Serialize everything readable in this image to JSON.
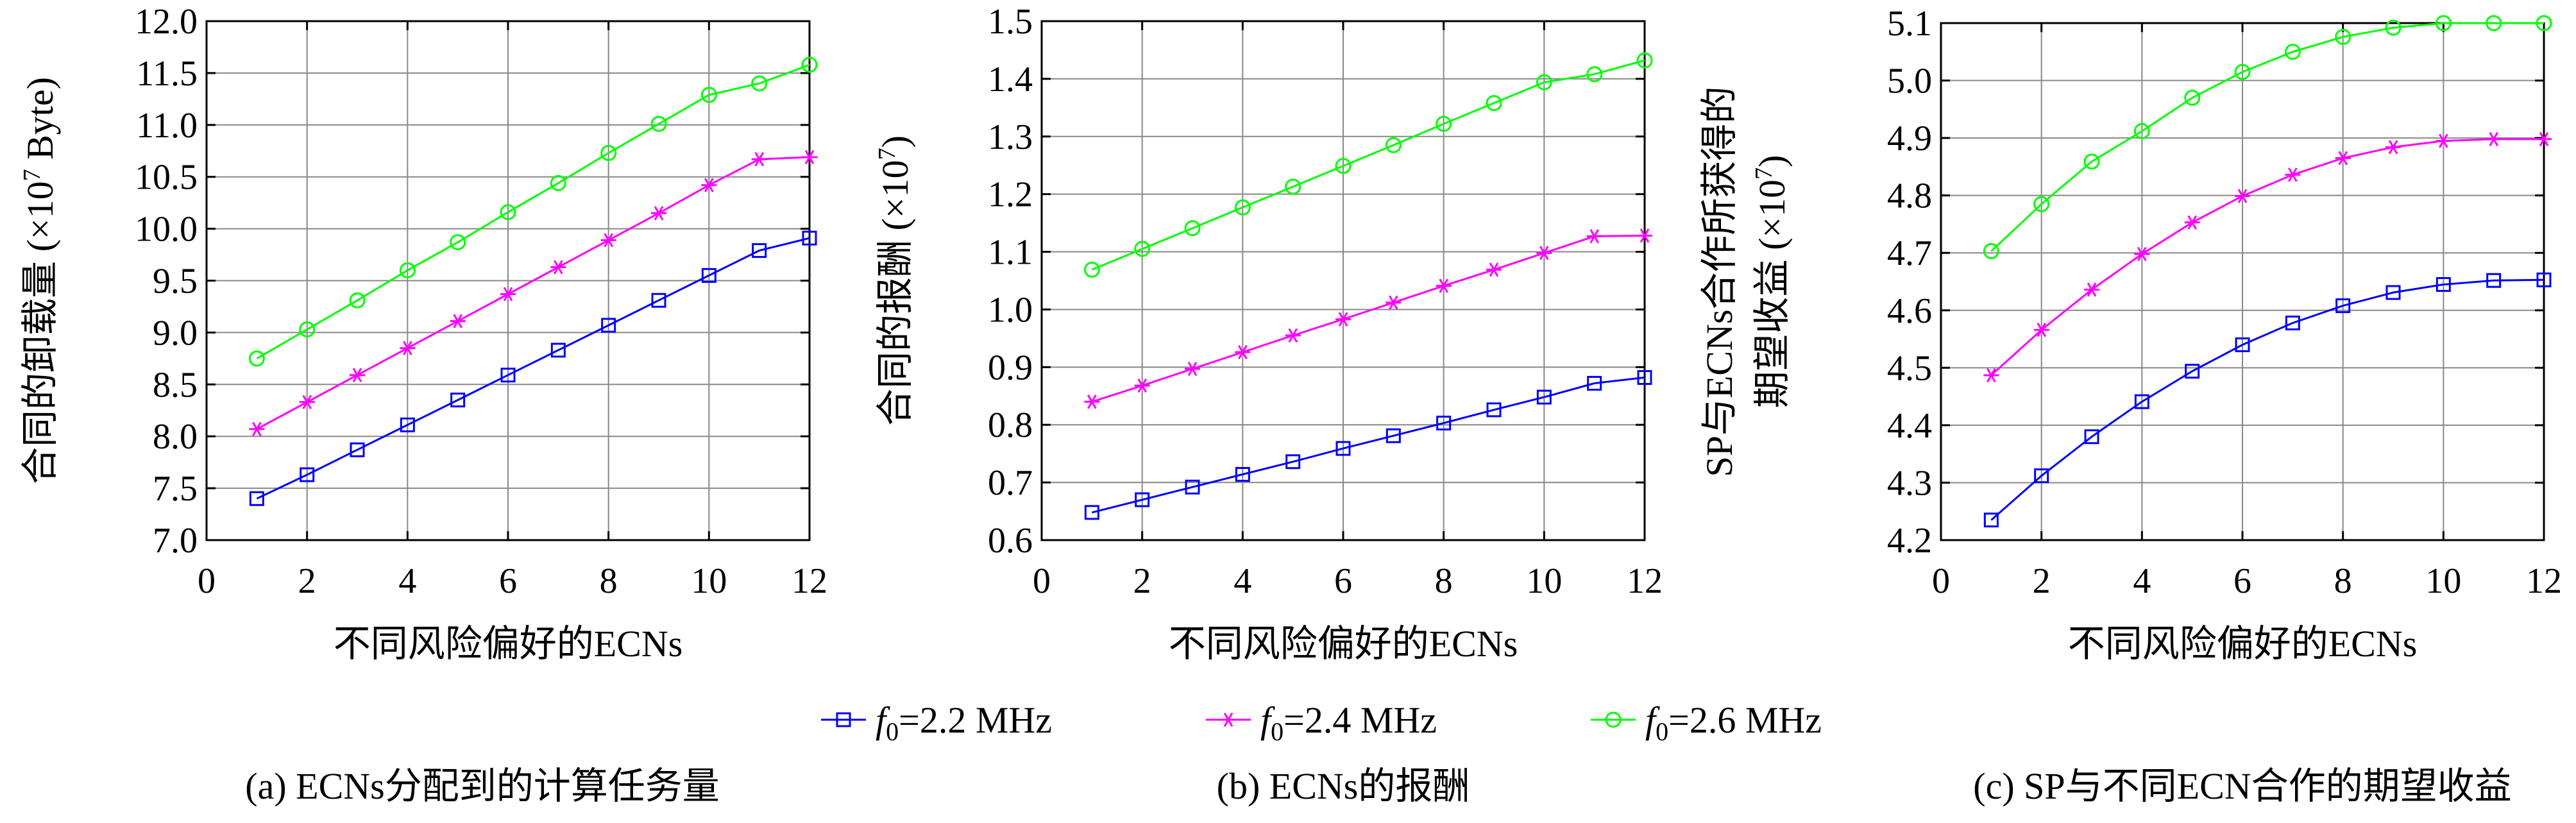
{
  "legend": {
    "items": [
      {
        "prefix": "f",
        "sub": "0",
        "suffix": "=2.2 MHz",
        "color": "#0000ff",
        "marker": "square"
      },
      {
        "prefix": "f",
        "sub": "0",
        "suffix": "=2.4 MHz",
        "color": "#ff00ff",
        "marker": "star"
      },
      {
        "prefix": "f",
        "sub": "0",
        "suffix": "=2.6 MHz",
        "color": "#00ff00",
        "marker": "circle"
      }
    ]
  },
  "chart_data": [
    {
      "type": "line",
      "caption": "(a) ECNs分配到的计算任务量",
      "xlabel": "不同风险偏好的ECNs",
      "ylabel_lines": [
        [
          {
            "t": "合同的卸载量 (×10"
          },
          {
            "t": "7",
            "sup": true
          },
          {
            "t": " Byte)"
          }
        ]
      ],
      "xlim": [
        0,
        12
      ],
      "ylim": [
        7.0,
        12.0
      ],
      "xticks": [
        0,
        2,
        4,
        6,
        8,
        10,
        12
      ],
      "yticks": [
        7.0,
        7.5,
        8.0,
        8.5,
        9.0,
        9.5,
        10.0,
        10.5,
        11.0,
        11.5,
        12.0
      ],
      "ytick_decimals": 1,
      "grid": true,
      "x": [
        1,
        2,
        3,
        4,
        5,
        6,
        7,
        8,
        9,
        10,
        11,
        12
      ],
      "series": [
        {
          "name": "f0=2.2 MHz",
          "values": [
            7.4,
            7.63,
            7.87,
            8.11,
            8.35,
            8.59,
            8.83,
            9.07,
            9.31,
            9.55,
            9.79,
            9.91
          ]
        },
        {
          "name": "f0=2.4 MHz",
          "values": [
            8.07,
            8.33,
            8.59,
            8.85,
            9.11,
            9.37,
            9.63,
            9.89,
            10.15,
            10.42,
            10.67,
            10.69
          ]
        },
        {
          "name": "f0=2.6 MHz",
          "values": [
            8.75,
            9.03,
            9.31,
            9.6,
            9.87,
            10.16,
            10.44,
            10.73,
            11.01,
            11.29,
            11.4,
            11.58
          ]
        }
      ]
    },
    {
      "type": "line",
      "caption": "(b) ECNs的报酬",
      "xlabel": "不同风险偏好的ECNs",
      "ylabel_lines": [
        [
          {
            "t": "合同的报酬 (×10"
          },
          {
            "t": "7",
            "sup": true
          },
          {
            "t": ")"
          }
        ]
      ],
      "xlim": [
        0,
        12
      ],
      "ylim": [
        0.6,
        1.5
      ],
      "xticks": [
        0,
        2,
        4,
        6,
        8,
        10,
        12
      ],
      "yticks": [
        0.6,
        0.7,
        0.8,
        0.9,
        1.0,
        1.1,
        1.2,
        1.3,
        1.4,
        1.5
      ],
      "ytick_decimals": 1,
      "grid": true,
      "x": [
        1,
        2,
        3,
        4,
        5,
        6,
        7,
        8,
        9,
        10,
        11,
        12
      ],
      "series": [
        {
          "name": "f0=2.2 MHz",
          "values": [
            0.648,
            0.67,
            0.692,
            0.714,
            0.736,
            0.759,
            0.781,
            0.803,
            0.826,
            0.848,
            0.872,
            0.882
          ]
        },
        {
          "name": "f0=2.4 MHz",
          "values": [
            0.84,
            0.868,
            0.897,
            0.926,
            0.955,
            0.983,
            1.012,
            1.041,
            1.069,
            1.098,
            1.127,
            1.128
          ]
        },
        {
          "name": "f0=2.6 MHz",
          "values": [
            1.069,
            1.105,
            1.141,
            1.177,
            1.213,
            1.249,
            1.285,
            1.322,
            1.358,
            1.394,
            1.408,
            1.432
          ]
        }
      ]
    },
    {
      "type": "line",
      "caption": "(c) SP与不同ECN合作的期望收益",
      "xlabel": "不同风险偏好的ECNs",
      "ylabel_lines": [
        [
          {
            "t": "SP与ECNs合作所获得的"
          }
        ],
        [
          {
            "t": "期望收益 (×10"
          },
          {
            "t": "7",
            "sup": true
          },
          {
            "t": ")"
          }
        ]
      ],
      "xlim": [
        0,
        12
      ],
      "ylim": [
        4.2,
        5.1
      ],
      "xticks": [
        0,
        2,
        4,
        6,
        8,
        10,
        12
      ],
      "yticks": [
        4.2,
        4.3,
        4.4,
        4.5,
        4.6,
        4.7,
        4.8,
        4.9,
        5.0,
        5.1
      ],
      "ytick_decimals": 1,
      "grid": true,
      "x": [
        1,
        2,
        3,
        4,
        5,
        6,
        7,
        8,
        9,
        10,
        11,
        12
      ],
      "series": [
        {
          "name": "f0=2.2 MHz",
          "values": [
            4.235,
            4.312,
            4.38,
            4.441,
            4.494,
            4.54,
            4.578,
            4.608,
            4.631,
            4.645,
            4.652,
            4.653
          ]
        },
        {
          "name": "f0=2.4 MHz",
          "values": [
            4.487,
            4.566,
            4.636,
            4.698,
            4.753,
            4.799,
            4.836,
            4.865,
            4.884,
            4.895,
            4.898,
            4.898
          ]
        },
        {
          "name": "f0=2.6 MHz",
          "values": [
            4.703,
            4.785,
            4.859,
            4.912,
            4.97,
            5.015,
            5.05,
            5.076,
            5.092,
            5.1,
            5.1,
            5.1
          ]
        }
      ]
    }
  ]
}
